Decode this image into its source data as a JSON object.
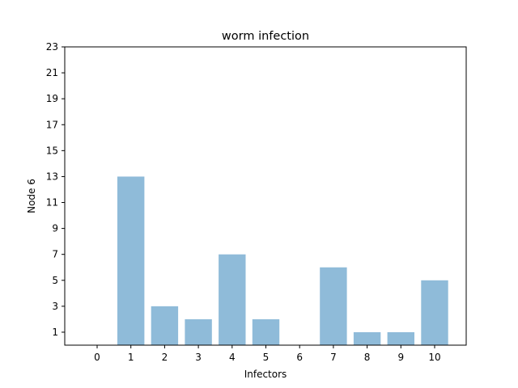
{
  "chart_data": {
    "type": "bar",
    "title": "worm infection",
    "xlabel": "Infectors",
    "ylabel": "Node 6",
    "categories": [
      "0",
      "1",
      "2",
      "3",
      "4",
      "5",
      "6",
      "7",
      "8",
      "9",
      "10"
    ],
    "values": [
      0,
      13,
      3,
      2,
      7,
      2,
      0,
      6,
      1,
      1,
      5
    ],
    "ylim": [
      0,
      23
    ],
    "yticks": [
      1,
      3,
      5,
      7,
      9,
      11,
      13,
      15,
      17,
      19,
      21,
      23
    ],
    "grid": false,
    "legend": "none",
    "bar_color": "#8fbbd9"
  }
}
